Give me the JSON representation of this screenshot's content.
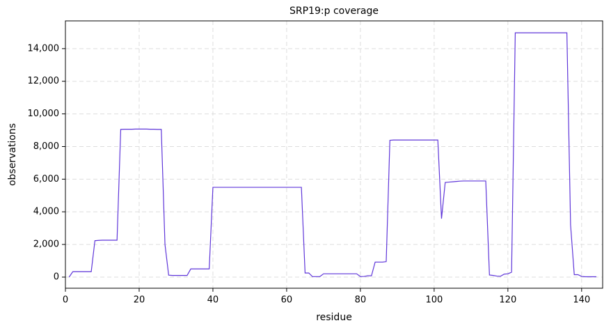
{
  "chart_data": {
    "type": "line",
    "title": "SRP19:p coverage",
    "x_label": "residue",
    "y_label": "observations",
    "x": [
      1,
      2,
      3,
      4,
      5,
      6,
      7,
      8,
      9,
      10,
      11,
      12,
      13,
      14,
      15,
      16,
      17,
      18,
      19,
      20,
      21,
      22,
      23,
      24,
      25,
      26,
      27,
      28,
      29,
      30,
      31,
      32,
      33,
      34,
      35,
      36,
      37,
      38,
      39,
      40,
      41,
      42,
      43,
      44,
      45,
      46,
      47,
      48,
      49,
      50,
      51,
      52,
      53,
      54,
      55,
      56,
      57,
      58,
      59,
      60,
      61,
      62,
      63,
      64,
      65,
      66,
      67,
      68,
      69,
      70,
      71,
      72,
      73,
      74,
      75,
      76,
      77,
      78,
      79,
      80,
      81,
      82,
      83,
      84,
      85,
      86,
      87,
      88,
      89,
      90,
      91,
      92,
      93,
      94,
      95,
      96,
      97,
      98,
      99,
      100,
      101,
      102,
      103,
      104,
      105,
      106,
      107,
      108,
      109,
      110,
      111,
      112,
      113,
      114,
      115,
      116,
      117,
      118,
      119,
      120,
      121,
      122,
      123,
      124,
      125,
      126,
      127,
      128,
      129,
      130,
      131,
      132,
      133,
      134,
      135,
      136,
      137,
      138,
      139,
      140,
      141,
      142,
      143,
      144
    ],
    "series": [
      {
        "color": "#5e35d9",
        "values": [
          0,
          330,
          330,
          330,
          330,
          330,
          330,
          2230,
          2250,
          2260,
          2260,
          2260,
          2260,
          2260,
          9050,
          9060,
          9060,
          9060,
          9070,
          9070,
          9070,
          9070,
          9060,
          9060,
          9050,
          9050,
          2000,
          120,
          100,
          100,
          100,
          100,
          100,
          500,
          500,
          500,
          500,
          500,
          500,
          5500,
          5500,
          5500,
          5500,
          5500,
          5500,
          5500,
          5500,
          5500,
          5500,
          5500,
          5500,
          5500,
          5500,
          5500,
          5500,
          5500,
          5500,
          5500,
          5500,
          5500,
          5500,
          5500,
          5500,
          5500,
          250,
          250,
          30,
          30,
          30,
          200,
          200,
          200,
          200,
          200,
          200,
          200,
          200,
          200,
          200,
          30,
          40,
          80,
          80,
          920,
          920,
          920,
          950,
          8380,
          8400,
          8400,
          8400,
          8400,
          8400,
          8400,
          8400,
          8400,
          8400,
          8400,
          8400,
          8400,
          8400,
          3580,
          5800,
          5820,
          5840,
          5860,
          5880,
          5890,
          5890,
          5890,
          5890,
          5890,
          5890,
          5890,
          130,
          100,
          60,
          50,
          180,
          200,
          300,
          14970,
          14970,
          14970,
          14970,
          14970,
          14970,
          14970,
          14970,
          14970,
          14970,
          14970,
          14970,
          14970,
          14970,
          14970,
          3200,
          150,
          150,
          40,
          20,
          20,
          20,
          20
        ]
      }
    ],
    "xlim": [
      0,
      145.7
    ],
    "xticks": [
      0,
      20,
      40,
      60,
      80,
      100,
      120,
      140
    ],
    "ylim": [
      -683,
      15700
    ],
    "yticks": [
      0,
      {
        "value": 2000,
        "label": "2,000"
      },
      {
        "value": 4000,
        "label": "4,000"
      },
      {
        "value": 6000,
        "label": "6,000"
      },
      {
        "value": 8000,
        "label": "8,000"
      },
      {
        "value": 10000,
        "label": "10,000"
      },
      {
        "value": 12000,
        "label": "12,000"
      },
      {
        "value": 14000,
        "label": "14,000"
      }
    ],
    "grid": true
  }
}
